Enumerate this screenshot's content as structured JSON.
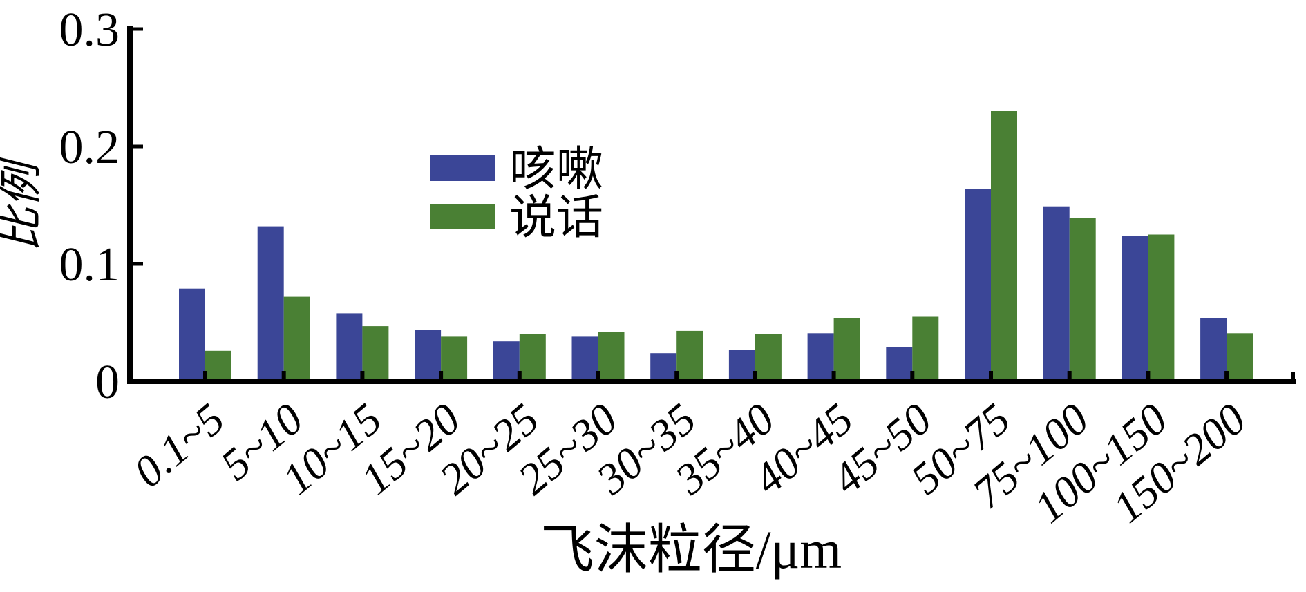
{
  "figure": {
    "background": "#ffffff"
  },
  "chart_data": {
    "type": "bar",
    "title": "",
    "xlabel": "飞沫粒径/μm",
    "ylabel": "比例",
    "categories": [
      "0.1~5",
      "5~10",
      "10~15",
      "15~20",
      "20~25",
      "25~30",
      "30~35",
      "35~40",
      "40~45",
      "45~50",
      "50~75",
      "75~100",
      "100~150",
      "150~200"
    ],
    "series": [
      {
        "name": "咳嗽",
        "color": "#3B4697",
        "values": [
          0.079,
          0.132,
          0.058,
          0.044,
          0.034,
          0.038,
          0.024,
          0.027,
          0.041,
          0.029,
          0.164,
          0.149,
          0.124,
          0.054
        ]
      },
      {
        "name": "说话",
        "color": "#4A8034",
        "values": [
          0.026,
          0.072,
          0.047,
          0.038,
          0.04,
          0.042,
          0.043,
          0.04,
          0.054,
          0.055,
          0.23,
          0.139,
          0.125,
          0.041
        ]
      }
    ],
    "ylim": [
      0,
      0.3
    ],
    "yticks": [
      0,
      0.1,
      0.2,
      0.3
    ],
    "ytick_labels": [
      "0",
      "0.1",
      "0.2",
      "0.3"
    ],
    "grid": false,
    "legend_position": "upper-left-of-center",
    "axis_color": "#000000",
    "tick_direction": "in"
  }
}
